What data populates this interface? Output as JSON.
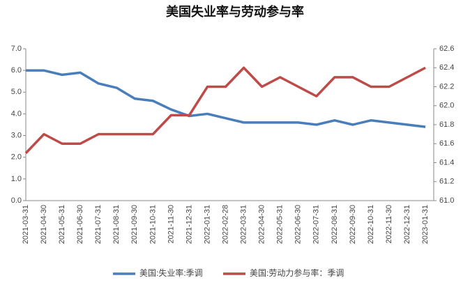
{
  "chart_data": {
    "type": "line",
    "title": "美国失业率与劳动参与率",
    "categories": [
      "2021-03-31",
      "2021-04-30",
      "2021-05-31",
      "2021-06-30",
      "2021-07-31",
      "2021-08-31",
      "2021-09-30",
      "2021-10-31",
      "2021-11-30",
      "2021-12-31",
      "2022-01-31",
      "2022-02-28",
      "2022-03-31",
      "2022-04-30",
      "2022-05-31",
      "2022-06-30",
      "2022-07-31",
      "2022-08-31",
      "2022-09-30",
      "2022-10-31",
      "2022-11-30",
      "2022-12-31",
      "2023-01-31"
    ],
    "series": [
      {
        "name": "美国:失业率:季调",
        "color": "#4a7ebb",
        "values": [
          6.0,
          6.0,
          5.8,
          5.9,
          5.4,
          5.2,
          4.7,
          4.6,
          4.2,
          3.9,
          4.0,
          3.8,
          3.6,
          3.6,
          3.6,
          3.6,
          3.5,
          3.7,
          3.5,
          3.7,
          3.6,
          3.5,
          3.4
        ]
      },
      {
        "name": "美国:劳动力参与率：季调",
        "color": "#be4b48",
        "axis": "y2",
        "values": [
          61.5,
          61.7,
          61.6,
          61.6,
          61.7,
          61.7,
          61.7,
          61.7,
          61.9,
          61.9,
          62.2,
          62.2,
          62.4,
          62.2,
          62.3,
          62.2,
          62.1,
          62.3,
          62.3,
          62.2,
          62.2,
          62.3,
          62.4
        ]
      }
    ],
    "ylim": [
      0,
      7
    ],
    "yticks": [
      {
        "value": 0,
        "label": "0.0"
      },
      {
        "value": 1,
        "label": "1.0"
      },
      {
        "value": 2,
        "label": "2.0"
      },
      {
        "value": 3,
        "label": "3.0"
      },
      {
        "value": 4,
        "label": "4.0"
      },
      {
        "value": 5,
        "label": "5.0"
      },
      {
        "value": 6,
        "label": "6.0"
      },
      {
        "value": 7,
        "label": "7.0"
      }
    ],
    "y2lim": [
      61.0,
      62.6
    ],
    "y2ticks": [
      {
        "value": 61,
        "label": "61.0"
      },
      61.2,
      61.4,
      61.6,
      61.8,
      {
        "value": 62,
        "label": "62.0"
      },
      62.2,
      62.4,
      62.6
    ],
    "grid": false,
    "legend": "bottom"
  }
}
